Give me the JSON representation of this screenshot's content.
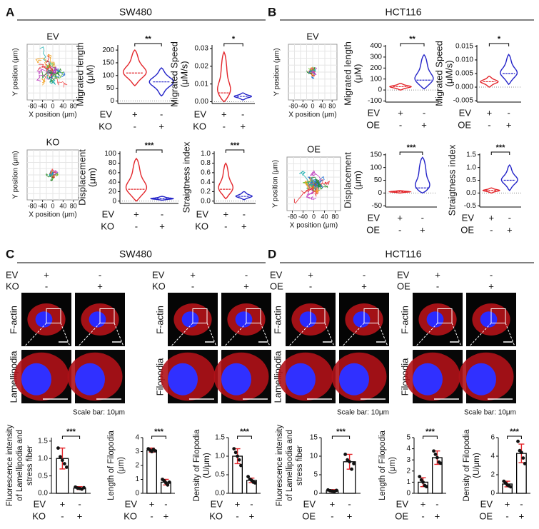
{
  "panels": [
    {
      "letter": "A",
      "title": "SW480"
    },
    {
      "letter": "B",
      "title": "HCT116"
    },
    {
      "letter": "C",
      "title": "SW480"
    },
    {
      "letter": "D",
      "title": "HCT116"
    }
  ],
  "tracks": [
    {
      "label": "EV",
      "xlabel": "X position (μm)",
      "ylabel": "Y position (μm)",
      "xlim": [
        -100,
        100
      ],
      "xticks": [
        -80,
        -40,
        0,
        40,
        80
      ]
    },
    {
      "label": "KO",
      "xlabel": "X position (μm)",
      "ylabel": "Y position (μm)",
      "xlim": [
        -100,
        100
      ],
      "xticks": [
        -80,
        -40,
        0,
        40,
        80
      ]
    },
    {
      "label": "EV",
      "xlabel": "X position (μm)",
      "ylabel": "Y position (μm)",
      "xlim": [
        -100,
        100
      ],
      "xticks": [
        -80,
        -40,
        0,
        40,
        80
      ]
    },
    {
      "label": "OE",
      "xlabel": "X position (μm)",
      "ylabel": "Y position (μm)",
      "xlim": [
        -100,
        100
      ],
      "xticks": [
        -80,
        -40,
        0,
        40,
        80
      ]
    }
  ],
  "chart_data": [
    {
      "type": "violin",
      "ylabel": [
        "Migrated length",
        "(μM)"
      ],
      "ylim": [
        -10,
        220
      ],
      "yticks": [
        0,
        50,
        100,
        150,
        200
      ],
      "significance": "**",
      "conditions": [
        {
          "name": "EV",
          "signs": [
            "+",
            "-"
          ]
        },
        {
          "name": "KO",
          "signs": [
            "-",
            "+"
          ]
        }
      ],
      "colors": [
        "#e3262b",
        "#2323c8"
      ],
      "values": [
        110,
        75
      ],
      "mins": [
        60,
        20
      ],
      "maxs": [
        200,
        130
      ]
    },
    {
      "type": "violin",
      "ylabel": [
        "Migrated Speed",
        "(μM/s)"
      ],
      "ylim": [
        -0.001,
        0.032
      ],
      "yticks": [
        {
          "value": 0,
          "label": "0.00"
        },
        0.01,
        0.02,
        0.03
      ],
      "significance": "*",
      "conditions": [
        {
          "name": "EV",
          "signs": [
            "+",
            "-"
          ]
        },
        {
          "name": "KO",
          "signs": [
            "-",
            "+"
          ]
        }
      ],
      "colors": [
        "#e3262b",
        "#2323c8"
      ],
      "values": [
        0.005,
        0.003
      ],
      "mins": [
        0,
        0.001
      ],
      "maxs": [
        0.028,
        0.005
      ]
    },
    {
      "type": "violin",
      "ylabel": [
        "Displacement",
        "(μm)"
      ],
      "ylim": [
        -5,
        105
      ],
      "yticks": [
        0,
        20,
        40,
        60,
        80,
        100
      ],
      "significance": "***",
      "conditions": [
        {
          "name": "EV",
          "signs": [
            "+",
            "-"
          ]
        },
        {
          "name": "KO",
          "signs": [
            "-",
            "+"
          ]
        }
      ],
      "colors": [
        "#e3262b",
        "#2323c8"
      ],
      "values": [
        25,
        5
      ],
      "mins": [
        0,
        2
      ],
      "maxs": [
        90,
        10
      ]
    },
    {
      "type": "violin",
      "ylabel": [
        "Straigtness index"
      ],
      "ylim": [
        -0.05,
        1.05
      ],
      "yticks": [
        {
          "value": 0,
          "label": "0.0"
        },
        0.2,
        0.4,
        0.6,
        0.8,
        {
          "value": 1,
          "label": "1.0"
        }
      ],
      "significance": "***",
      "conditions": [
        {
          "name": "EV",
          "signs": [
            "+",
            "-"
          ]
        },
        {
          "name": "KO",
          "signs": [
            "-",
            "+"
          ]
        }
      ],
      "colors": [
        "#e3262b",
        "#2323c8"
      ],
      "values": [
        0.25,
        0.1
      ],
      "mins": [
        0.05,
        0.03
      ],
      "maxs": [
        0.8,
        0.2
      ]
    },
    {
      "type": "violin",
      "ylabel": [
        "Migrated length",
        "(μM)"
      ],
      "ylim": [
        -110,
        410
      ],
      "yticks": [
        -100,
        0,
        100,
        200,
        300,
        400
      ],
      "significance": "**",
      "conditions": [
        {
          "name": "EV",
          "signs": [
            "+",
            "-"
          ]
        },
        {
          "name": "OE",
          "signs": [
            "-",
            "+"
          ]
        }
      ],
      "colors": [
        "#e3262b",
        "#2323c8"
      ],
      "values": [
        30,
        90
      ],
      "mins": [
        0,
        10
      ],
      "maxs": [
        60,
        320
      ]
    },
    {
      "type": "violin",
      "ylabel": [
        "Migrated Speed",
        "(μM/s)"
      ],
      "ylim": [
        -0.0055,
        0.0155
      ],
      "yticks": [
        -0.005,
        {
          "value": 0,
          "label": "0.000"
        },
        0.005,
        {
          "value": 0.01,
          "label": "0.010"
        },
        0.015
      ],
      "significance": "*",
      "conditions": [
        {
          "name": "EV",
          "signs": [
            "+",
            "-"
          ]
        },
        {
          "name": "OE",
          "signs": [
            "-",
            "+"
          ]
        }
      ],
      "colors": [
        "#e3262b",
        "#2323c8"
      ],
      "values": [
        0.002,
        0.005
      ],
      "mins": [
        0,
        0.001
      ],
      "maxs": [
        0.004,
        0.012
      ]
    },
    {
      "type": "violin",
      "ylabel": [
        "Displacement",
        "(μm)"
      ],
      "ylim": [
        -55,
        155
      ],
      "yticks": [
        -50,
        0,
        50,
        100,
        150
      ],
      "significance": "***",
      "conditions": [
        {
          "name": "EV",
          "signs": [
            "+",
            "-"
          ]
        },
        {
          "name": "OE",
          "signs": [
            "-",
            "+"
          ]
        }
      ],
      "colors": [
        "#e3262b",
        "#2323c8"
      ],
      "values": [
        5,
        20
      ],
      "mins": [
        0,
        0
      ],
      "maxs": [
        10,
        140
      ]
    },
    {
      "type": "violin",
      "ylabel": [
        "Straigtness index"
      ],
      "ylim": [
        -0.55,
        1.55
      ],
      "yticks": [
        -0.5,
        {
          "value": 0,
          "label": "0.0"
        },
        0.5,
        {
          "value": 1,
          "label": "1.0"
        },
        1.5
      ],
      "significance": "***",
      "conditions": [
        {
          "name": "EV",
          "signs": [
            "+",
            "-"
          ]
        },
        {
          "name": "OE",
          "signs": [
            "-",
            "+"
          ]
        }
      ],
      "colors": [
        "#e3262b",
        "#2323c8"
      ],
      "values": [
        0.1,
        0.5
      ],
      "mins": [
        0,
        0.1
      ],
      "maxs": [
        0.2,
        1.1
      ]
    },
    {
      "type": "bar",
      "ylabel": [
        "Fluorescence intensity",
        "of Lamellipodia and",
        "stress fiber"
      ],
      "ylim": [
        0,
        1.6
      ],
      "yticks": [
        {
          "value": 0,
          "label": "0.0"
        },
        0.5,
        {
          "value": 1,
          "label": "1.0"
        },
        1.5
      ],
      "significance": "***",
      "conditions": [
        {
          "name": "EV",
          "signs": [
            "+",
            "-"
          ]
        },
        {
          "name": "KO",
          "signs": [
            "-",
            "+"
          ]
        }
      ],
      "error_color": "#e3262b",
      "values": [
        1.0,
        0.15
      ],
      "errors": [
        0.3,
        0.04
      ],
      "points": [
        [
          1.3,
          1.05,
          0.95,
          0.85,
          0.75
        ],
        [
          0.18,
          0.15,
          0.14,
          0.12,
          0.16
        ]
      ]
    },
    {
      "type": "bar",
      "ylabel": [
        "Length of Filopodia",
        "(μm)"
      ],
      "ylim": [
        0,
        4
      ],
      "yticks": [
        0,
        1,
        2,
        3,
        4
      ],
      "significance": "***",
      "conditions": [
        {
          "name": "EV",
          "signs": [
            "+",
            "-"
          ]
        },
        {
          "name": "KO",
          "signs": [
            "-",
            "+"
          ]
        }
      ],
      "error_color": "#e3262b",
      "values": [
        3.1,
        0.8
      ],
      "errors": [
        0.15,
        0.2
      ],
      "points": [
        [
          3.2,
          3.1,
          3.0,
          3.15,
          3.05
        ],
        [
          1.0,
          0.9,
          0.75,
          0.6,
          0.8
        ]
      ]
    },
    {
      "type": "bar",
      "ylabel": [
        "Density of Filopodia",
        "(U/μm)"
      ],
      "ylim": [
        0,
        1.5
      ],
      "yticks": [
        {
          "value": 0,
          "label": "0.0"
        },
        0.5,
        {
          "value": 1,
          "label": "1.0"
        },
        1.5
      ],
      "significance": "***",
      "conditions": [
        {
          "name": "EV",
          "signs": [
            "+",
            "-"
          ]
        },
        {
          "name": "KO",
          "signs": [
            "-",
            "+"
          ]
        }
      ],
      "error_color": "#e3262b",
      "values": [
        1.0,
        0.35
      ],
      "errors": [
        0.2,
        0.06
      ],
      "points": [
        [
          1.2,
          1.1,
          1.0,
          0.9,
          0.75
        ],
        [
          0.45,
          0.38,
          0.35,
          0.3,
          0.28
        ]
      ]
    },
    {
      "type": "bar",
      "ylabel": [
        "Fluorescence intensity",
        "of Lamellipodia and",
        "stress fiber"
      ],
      "ylim": [
        0,
        15
      ],
      "yticks": [
        0,
        5,
        10,
        15
      ],
      "significance": "***",
      "conditions": [
        {
          "name": "EV",
          "signs": [
            "+",
            "-"
          ]
        },
        {
          "name": "OE",
          "signs": [
            "-",
            "+"
          ]
        }
      ],
      "error_color": "#e3262b",
      "values": [
        0.7,
        8.5
      ],
      "errors": [
        0.3,
        2
      ],
      "points": [
        [
          0.9,
          0.7,
          0.6,
          0.5,
          0.8
        ],
        [
          10.5,
          9,
          8.5,
          6.5,
          8
        ]
      ]
    },
    {
      "type": "bar",
      "ylabel": [
        "Length of Filopodia",
        "(μm)"
      ],
      "ylim": [
        0,
        5
      ],
      "yticks": [
        0,
        1,
        2,
        3,
        4,
        5
      ],
      "significance": "***",
      "conditions": [
        {
          "name": "EV",
          "signs": [
            "+",
            "-"
          ]
        },
        {
          "name": "OE",
          "signs": [
            "-",
            "+"
          ]
        }
      ],
      "error_color": "#e3262b",
      "values": [
        1.0,
        3.2
      ],
      "errors": [
        0.4,
        0.6
      ],
      "points": [
        [
          1.5,
          1.2,
          1.0,
          0.7,
          0.6
        ],
        [
          3.8,
          3.5,
          3.2,
          2.8,
          2.7
        ]
      ]
    },
    {
      "type": "bar",
      "ylabel": [
        "Density of Filopodia",
        "(U/μm)"
      ],
      "ylim": [
        0,
        6
      ],
      "yticks": [
        0,
        2,
        4,
        6
      ],
      "significance": "***",
      "conditions": [
        {
          "name": "EV",
          "signs": [
            "+",
            "-"
          ]
        },
        {
          "name": "OE",
          "signs": [
            "-",
            "+"
          ]
        }
      ],
      "error_color": "#e3262b",
      "values": [
        1.0,
        4.3
      ],
      "errors": [
        0.3,
        1
      ],
      "points": [
        [
          1.3,
          1.1,
          0.9,
          0.8,
          0.7
        ],
        [
          5.6,
          4.6,
          4.4,
          3.8,
          3.2
        ]
      ]
    }
  ],
  "microscopy": [
    {
      "conditions": [
        {
          "name": "EV",
          "signs": [
            "+",
            "-"
          ]
        },
        {
          "name": "KO",
          "signs": [
            "-",
            "+"
          ]
        }
      ],
      "rows": [
        "F-actin",
        "Lamellipodia"
      ],
      "scale_bar": "Scale bar: 10μm"
    },
    {
      "conditions": [
        {
          "name": "EV",
          "signs": [
            "+",
            "-"
          ]
        },
        {
          "name": "KO",
          "signs": [
            "-",
            "+"
          ]
        }
      ],
      "rows": [
        "F-actin",
        "Filopodia"
      ]
    },
    {
      "conditions": [
        {
          "name": "EV",
          "signs": [
            "+",
            "-"
          ]
        },
        {
          "name": "OE",
          "signs": [
            "-",
            "+"
          ]
        }
      ],
      "rows": [
        "F-actin",
        "Lamellipodia"
      ],
      "scale_bar": "Scale bar: 10μm"
    },
    {
      "conditions": [
        {
          "name": "EV",
          "signs": [
            "+",
            "-"
          ]
        },
        {
          "name": "OE",
          "signs": [
            "-",
            "+"
          ]
        }
      ],
      "rows": [
        "F-actin",
        "Filopodia"
      ],
      "scale_bar": "Scale bar: 10μm"
    }
  ]
}
